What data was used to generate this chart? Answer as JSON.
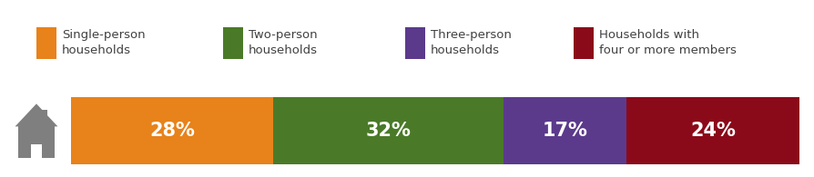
{
  "segments": [
    {
      "label": "28%",
      "value": 28,
      "color": "#E8821A"
    },
    {
      "label": "32%",
      "value": 32,
      "color": "#4A7A28"
    },
    {
      "label": "17%",
      "value": 17,
      "color": "#5B3A8C"
    },
    {
      "label": "24%",
      "value": 24,
      "color": "#8B0A1A"
    }
  ],
  "legend": [
    {
      "text": "Single-person\nhouseholds",
      "color": "#E8821A"
    },
    {
      "text": "Two-person\nhouseholds",
      "color": "#4A7A28"
    },
    {
      "text": "Three-person\nhouseholds",
      "color": "#5B3A8C"
    },
    {
      "text": "Households with\nfour or more members",
      "color": "#8B0A1A"
    }
  ],
  "icon_color": "#7F7F7F",
  "background_color": "#ffffff",
  "text_color": "#ffffff",
  "legend_text_color": "#404040",
  "label_fontsize": 15,
  "legend_fontsize": 9.5
}
